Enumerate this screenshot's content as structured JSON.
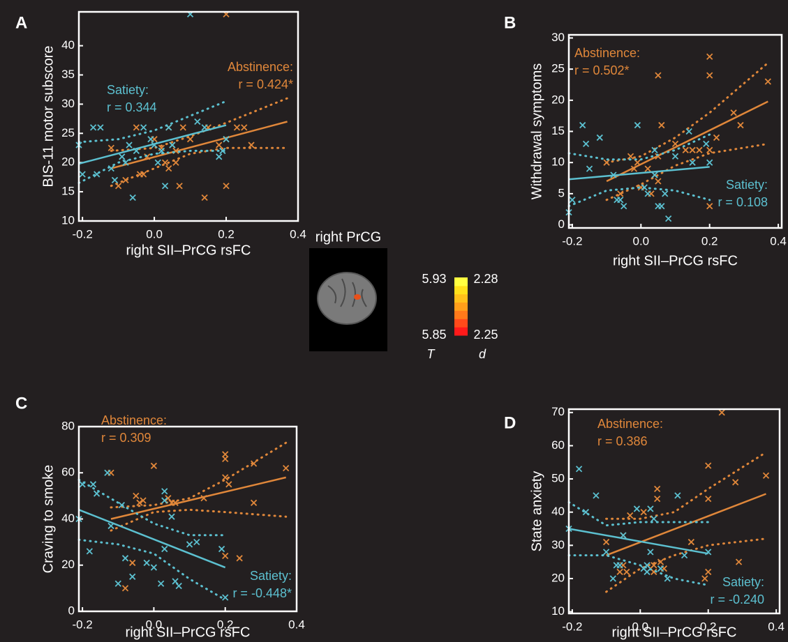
{
  "chart_data": [
    {
      "type": "scatter",
      "panel": "A",
      "xlabel": "right SII–PrCG rsFC",
      "ylabel": "BIS-11 motor subscore",
      "xlim": [
        -0.21,
        0.4
      ],
      "ylim": [
        10,
        45.8
      ],
      "xticks": [
        -0.2,
        {
          "value": 0,
          "label": "0.0"
        },
        0.2,
        0.4
      ],
      "yticks": [
        10,
        15,
        20,
        25,
        30,
        35,
        40
      ],
      "series": [
        {
          "name": "Abstinence:",
          "stat": "r = 0.424*",
          "color": "#e0873a",
          "x": [
            -0.12,
            -0.1,
            -0.08,
            -0.05,
            -0.04,
            -0.03,
            -0.02,
            0.0,
            0.02,
            0.03,
            0.04,
            0.04,
            0.05,
            0.06,
            0.07,
            0.08,
            0.1,
            0.14,
            0.15,
            0.18,
            0.2,
            0.2,
            0.2,
            0.23,
            0.25,
            0.27,
            0.06
          ],
          "values": [
            22.5,
            16,
            17,
            26,
            18,
            18,
            21,
            24,
            22.5,
            20,
            19,
            26,
            23,
            22,
            16,
            26,
            24,
            14,
            26,
            23,
            45.4,
            16,
            24,
            26,
            26,
            23,
            20
          ],
          "fit_x": [
            -0.12,
            0.37
          ],
          "fit": [
            19,
            27
          ],
          "ci_x": [
            -0.12,
            0,
            0.1,
            0.2,
            0.37
          ],
          "ci_upper": [
            22,
            22.5,
            24.5,
            26.8,
            31
          ],
          "ci_lower": [
            16,
            19,
            21.5,
            22.5,
            22.5
          ]
        },
        {
          "name": "Satiety:",
          "stat": "r = 0.344",
          "color": "#5cc0d0",
          "x": [
            -0.21,
            -0.2,
            -0.17,
            -0.15,
            -0.16,
            -0.12,
            -0.11,
            -0.09,
            -0.08,
            -0.07,
            -0.06,
            -0.05,
            -0.03,
            -0.01,
            0.0,
            0.01,
            0.02,
            0.03,
            0.04,
            0.05,
            0.1,
            0.12,
            0.14,
            0.18,
            0.19,
            0.2
          ],
          "values": [
            23,
            18,
            26,
            26,
            18,
            19,
            17,
            21,
            20,
            23,
            14,
            22,
            26,
            24,
            23,
            20,
            22,
            16,
            26,
            23,
            45.4,
            27,
            26,
            21,
            22,
            24
          ],
          "fit_x": [
            -0.21,
            0.2
          ],
          "fit": [
            19.8,
            26.4
          ],
          "ci_x": [
            -0.21,
            -0.1,
            0,
            0.1,
            0.2
          ],
          "ci_upper": [
            23.5,
            24,
            25.5,
            28,
            30.5
          ],
          "ci_lower": [
            16.5,
            20,
            21.5,
            22,
            22
          ]
        }
      ]
    },
    {
      "type": "scatter",
      "panel": "B",
      "xlabel": "right SII–PrCG rsFC",
      "ylabel": "Withdrawal symptoms",
      "xlim": [
        -0.21,
        0.41
      ],
      "ylim": [
        -0.5,
        30.5
      ],
      "xticks": [
        -0.2,
        {
          "value": 0,
          "label": "0.0"
        },
        0.2,
        0.4
      ],
      "yticks": [
        0,
        5,
        10,
        15,
        20,
        25,
        30
      ],
      "series": [
        {
          "name": "Abstinence:",
          "stat": "r = 0.502*",
          "color": "#e0873a",
          "x": [
            0.2,
            0.2,
            0.05,
            0.37,
            0.27,
            0.29,
            0.2,
            0.15,
            0.06,
            0.05,
            0.02,
            0.04,
            0.05,
            0.22,
            -0.03,
            -0.06,
            -0.01,
            0.0,
            0.1,
            0.2,
            -0.1,
            0.13,
            0.17,
            0.03,
            -0.02
          ],
          "values": [
            27,
            24,
            24,
            23,
            18,
            16,
            12,
            12,
            16,
            11,
            9,
            8,
            7,
            14,
            11,
            5,
            10,
            6,
            13,
            3,
            10,
            12,
            12,
            5,
            9
          ],
          "fit_x": [
            -0.1,
            0.37
          ],
          "fit": [
            7,
            19.8
          ],
          "ci_x": [
            -0.1,
            0,
            0.1,
            0.2,
            0.37
          ],
          "ci_upper": [
            10,
            11,
            14,
            18,
            26
          ],
          "ci_lower": [
            4,
            6.5,
            9.5,
            11.5,
            13
          ]
        },
        {
          "name": "Satiety:",
          "stat": "r = 0.108",
          "color": "#5cc0d0",
          "x": [
            -0.21,
            -0.2,
            -0.17,
            -0.15,
            -0.16,
            -0.12,
            -0.08,
            -0.07,
            -0.06,
            -0.05,
            -0.01,
            0.01,
            0.02,
            0.04,
            0.05,
            0.06,
            0.07,
            0.08,
            0.1,
            0.14,
            0.15,
            0.19,
            0.2,
            0.04
          ],
          "values": [
            2,
            4,
            16,
            9,
            13,
            14,
            8,
            4,
            4,
            3,
            16,
            6,
            5,
            12,
            3,
            3,
            5,
            1,
            11,
            15,
            10,
            13,
            10,
            8
          ],
          "fit_x": [
            -0.21,
            0.2
          ],
          "fit": [
            7.3,
            9.3
          ],
          "ci_x": [
            -0.21,
            -0.1,
            0,
            0.1,
            0.2
          ],
          "ci_upper": [
            11.5,
            10.5,
            10.5,
            12,
            14.5
          ],
          "ci_lower": [
            3,
            5.5,
            6,
            5.5,
            4
          ]
        }
      ]
    },
    {
      "type": "scatter",
      "panel": "C",
      "xlabel": "right SII–PrCG rsFC",
      "ylabel": "Craving to smoke",
      "xlim": [
        -0.21,
        0.4
      ],
      "ylim": [
        0,
        80
      ],
      "xticks": [
        -0.2,
        {
          "value": 0,
          "label": "0.0"
        },
        0.2,
        0.4
      ],
      "yticks": [
        0,
        20,
        40,
        60,
        80
      ],
      "series": [
        {
          "name": "Abstinence:",
          "stat": "r = 0.309",
          "color": "#e0873a",
          "x": [
            -0.12,
            -0.05,
            -0.04,
            -0.03,
            0.0,
            0.04,
            0.05,
            0.06,
            0.14,
            0.2,
            0.2,
            0.2,
            0.21,
            0.28,
            0.28,
            0.37,
            0.2,
            0.24,
            -0.06,
            -0.08,
            0.06
          ],
          "values": [
            60,
            50,
            47,
            48,
            63,
            49,
            47,
            47,
            49,
            68,
            66,
            58,
            55,
            64,
            47,
            62,
            24,
            23,
            21,
            10,
            47
          ],
          "fit_x": [
            -0.12,
            0.37
          ],
          "fit": [
            40,
            58
          ],
          "ci_x": [
            -0.12,
            0,
            0.1,
            0.2,
            0.37
          ],
          "ci_upper": [
            45,
            46,
            49,
            57,
            73
          ],
          "ci_lower": [
            35,
            43,
            44,
            43,
            41
          ]
        },
        {
          "name": "Satiety:",
          "stat": "r = -0.448*",
          "color": "#5cc0d0",
          "x": [
            -0.21,
            -0.2,
            -0.17,
            -0.16,
            -0.13,
            -0.12,
            -0.18,
            -0.1,
            -0.09,
            -0.08,
            -0.06,
            -0.02,
            0.0,
            0.02,
            0.03,
            0.03,
            0.05,
            0.06,
            0.07,
            0.1,
            0.12,
            0.19,
            0.2,
            0.03
          ],
          "values": [
            40,
            55,
            55,
            51,
            60,
            37,
            26,
            12,
            46,
            23,
            15,
            21,
            19,
            12,
            27,
            52,
            41,
            13,
            11,
            29,
            30,
            27,
            6,
            48
          ],
          "fit_x": [
            -0.21,
            0.2
          ],
          "fit": [
            44,
            19
          ],
          "ci_x": [
            -0.21,
            -0.1,
            0,
            0.1,
            0.2
          ],
          "ci_upper": [
            57,
            47,
            38,
            33,
            33
          ],
          "ci_lower": [
            31,
            29,
            25,
            14,
            5
          ]
        }
      ]
    },
    {
      "type": "scatter",
      "panel": "D",
      "xlabel": "right SII–PrCG rsFC",
      "ylabel": "State anxiety",
      "xlim": [
        -0.21,
        0.41
      ],
      "ylim": [
        9.5,
        71
      ],
      "xticks": [
        -0.2,
        {
          "value": 0,
          "label": "0.0"
        },
        0.2,
        0.4
      ],
      "yticks": [
        10,
        20,
        30,
        40,
        50,
        60,
        70
      ],
      "series": [
        {
          "name": "Abstinence:",
          "stat": "r = 0.386",
          "color": "#e0873a",
          "x": [
            0.24,
            0.2,
            0.05,
            0.05,
            0.37,
            0.28,
            0.2,
            -0.03,
            0.01,
            -0.1,
            -0.05,
            -0.06,
            -0.04,
            -0.05,
            0.04,
            0.04,
            0.06,
            0.2,
            0.19,
            0.29,
            0.15,
            0.07,
            0.03
          ],
          "values": [
            70,
            54,
            47,
            44,
            51,
            49,
            44,
            39,
            40,
            31,
            33,
            22,
            22,
            24,
            24,
            22,
            25,
            22,
            20,
            25,
            31,
            23,
            23
          ],
          "fit_x": [
            -0.1,
            0.37
          ],
          "fit": [
            27,
            45.5
          ],
          "ci_x": [
            -0.1,
            0,
            0.1,
            0.2,
            0.37
          ],
          "ci_upper": [
            38,
            38,
            40,
            47,
            58
          ],
          "ci_lower": [
            16,
            23,
            27,
            30,
            32
          ]
        },
        {
          "name": "Satiety:",
          "stat": "r = -0.240",
          "color": "#5cc0d0",
          "x": [
            -0.21,
            -0.18,
            -0.16,
            -0.13,
            -0.1,
            -0.08,
            -0.07,
            -0.06,
            -0.05,
            -0.01,
            0.01,
            0.02,
            0.03,
            0.03,
            0.04,
            0.06,
            0.08,
            0.11,
            0.13,
            0.2,
            0.02
          ],
          "values": [
            35,
            53,
            40,
            45,
            28,
            20,
            24,
            24,
            33,
            41,
            23,
            24,
            41,
            28,
            38,
            23,
            20,
            45,
            27,
            28,
            22
          ],
          "fit_x": [
            -0.21,
            0.2
          ],
          "fit": [
            35,
            27.5
          ],
          "ci_x": [
            -0.21,
            -0.1,
            0,
            0.1,
            0.2
          ],
          "ci_upper": [
            43,
            36,
            37,
            37,
            37
          ],
          "ci_lower": [
            27,
            27,
            24,
            20,
            18
          ]
        }
      ]
    },
    {
      "type": "colorbar",
      "title": "right PrCG",
      "colors": [
        "#ff1a1a",
        "#ff4a1a",
        "#ff7a1a",
        "#ff9e1a",
        "#ffc01a",
        "#ffe01a",
        "#ffff40"
      ],
      "scales": [
        {
          "name": "T",
          "lim": [
            5.85,
            5.93
          ]
        },
        {
          "name": "d",
          "lim": [
            2.25,
            2.28
          ]
        }
      ]
    }
  ]
}
